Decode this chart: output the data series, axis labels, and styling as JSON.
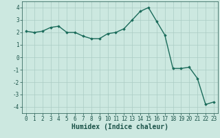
{
  "x": [
    0,
    1,
    2,
    3,
    4,
    5,
    6,
    7,
    8,
    9,
    10,
    11,
    12,
    13,
    14,
    15,
    16,
    17,
    18,
    19,
    20,
    21,
    22,
    23
  ],
  "y": [
    2.1,
    2.0,
    2.1,
    2.4,
    2.5,
    2.0,
    2.0,
    1.7,
    1.5,
    1.5,
    1.9,
    2.0,
    2.3,
    3.0,
    3.7,
    4.0,
    2.9,
    1.8,
    -0.9,
    -0.9,
    -0.8,
    -1.7,
    -3.8,
    -3.6
  ],
  "line_color": "#1a6b5a",
  "marker": "D",
  "marker_size": 1.8,
  "linewidth": 1.0,
  "xlabel": "Humidex (Indice chaleur)",
  "xlabel_fontsize": 7,
  "ylim": [
    -4.5,
    4.5
  ],
  "xlim": [
    -0.5,
    23.5
  ],
  "yticks": [
    -4,
    -3,
    -2,
    -1,
    0,
    1,
    2,
    3,
    4
  ],
  "xticks": [
    0,
    1,
    2,
    3,
    4,
    5,
    6,
    7,
    8,
    9,
    10,
    11,
    12,
    13,
    14,
    15,
    16,
    17,
    18,
    19,
    20,
    21,
    22,
    23
  ],
  "bg_color": "#cce8e0",
  "grid_color": "#aaccc4",
  "tick_fontsize": 5.5,
  "tick_color": "#1a5248",
  "xlabel_color": "#1a5248"
}
